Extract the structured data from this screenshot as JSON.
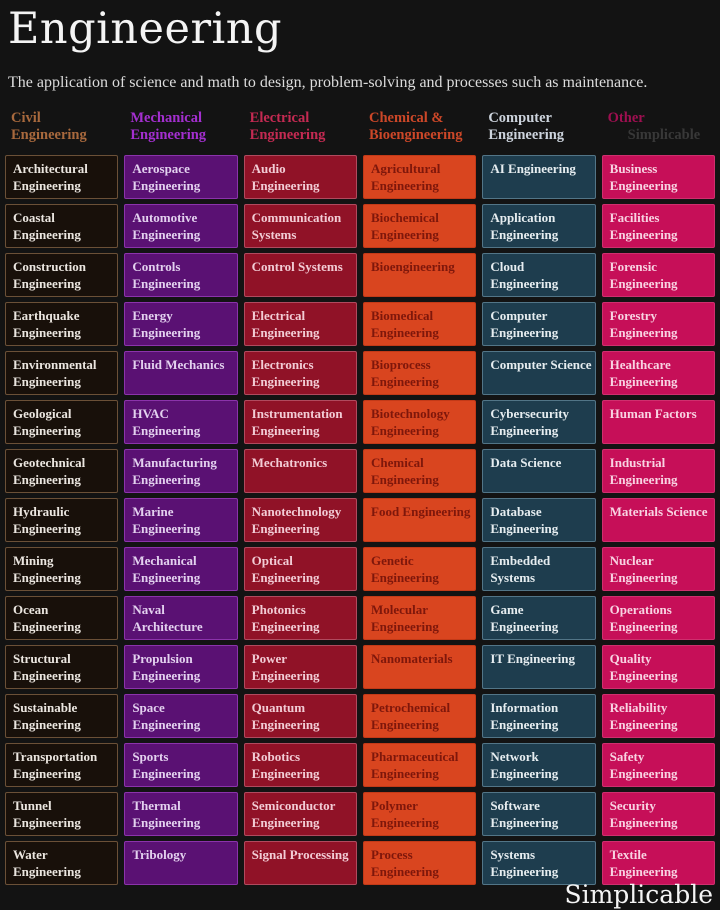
{
  "page": {
    "title": "Engineering",
    "subtitle": "The application of science and math to design, problem-solving and processes such as maintenance.",
    "brand": "Simplicable",
    "background": "#131313",
    "title_color": "#f4f4f4",
    "subtitle_color": "#dcdcdc"
  },
  "columns": [
    {
      "id": "civil",
      "header": "Civil Engineering",
      "header_color": "#a8693d",
      "cell_bg": "#18100a",
      "cell_border": "#6b5037",
      "cell_text": "#ebe6e0",
      "items": [
        "Architectural Engineering",
        "Coastal Engineering",
        "Construction Engineering",
        "Earthquake Engineering",
        "Environmental Engineering",
        "Geological Engineering",
        "Geotechnical Engineering",
        "Hydraulic Engineering",
        "Mining Engineering",
        "Ocean Engineering",
        "Structural Engineering",
        "Sustainable Engineering",
        "Transportation Engineering",
        "Tunnel Engineering",
        "Water Engineering"
      ]
    },
    {
      "id": "mechanical",
      "header": "Mechanical Engineering",
      "header_color": "#a42fd0",
      "cell_bg": "#5a1173",
      "cell_border": "#8b33ab",
      "cell_text": "#e3d1ef",
      "items": [
        "Aerospace Engineering",
        "Automotive Engineering",
        "Controls Engineering",
        "Energy Engineering",
        "Fluid Mechanics",
        "HVAC Engineering",
        "Manufacturing Engineering",
        "Marine Engineering",
        "Mechanical Engineering",
        "Naval Architecture",
        "Propulsion Engineering",
        "Space Engineering",
        "Sports Engineering",
        "Thermal Engineering",
        "Tribology"
      ]
    },
    {
      "id": "electrical",
      "header": "Electrical Engineering",
      "header_color": "#c42a52",
      "cell_bg": "#901227",
      "cell_border": "#b04a5e",
      "cell_text": "#f2ccd5",
      "items": [
        "Audio Engineering",
        "Communication Systems",
        "Control Systems",
        "Electrical Engineering",
        "Electronics Engineering",
        "Instrumentation Engineering",
        "Mechatronics",
        "Nanotechnology Engineering",
        "Optical Engineering",
        "Photonics Engineering",
        "Power Engineering",
        "Quantum Engineering",
        "Robotics Engineering",
        "Semiconductor Engineering",
        "Signal Processing"
      ]
    },
    {
      "id": "chemical-bio",
      "header": "Chemical & Bioengineering",
      "header_color": "#cc4728",
      "cell_bg": "#d9451f",
      "cell_border": "#c23a18",
      "cell_text": "#7e170b",
      "items": [
        "Agricultural Engineering",
        "Biochemical Engineering",
        "Bioengineering",
        "Biomedical Engineering",
        "Bioprocess Engineering",
        "Biotechnology Engineering",
        "Chemical Engineering",
        "Food Engineering",
        "Genetic Engineering",
        "Molecular Engineering",
        "Nanomaterials",
        "Petrochemical Engineering",
        "Pharmaceutical Engineering",
        "Polymer Engineering",
        "Process Engineering"
      ]
    },
    {
      "id": "computer",
      "header": "Computer Engineering",
      "header_color": "#ccd3dc",
      "cell_bg": "#1e3d4e",
      "cell_border": "#527587",
      "cell_text": "#e6edf0",
      "items": [
        "AI Engineering",
        "Application Engineering",
        "Cloud Engineering",
        "Computer Engineering",
        "Computer Science",
        "Cybersecurity Engineering",
        "Data Science",
        "Database Engineering",
        "Embedded Systems",
        "Game Engineering",
        "IT Engineering",
        "Information Engineering",
        "Network Engineering",
        "Software Engineering",
        "Systems Engineering"
      ]
    },
    {
      "id": "other",
      "header": "Other",
      "header_color": "#9e0f50",
      "watermark": "Simplicable",
      "cell_bg": "#c60f58",
      "cell_border": "#cf2f6e",
      "cell_text": "#f8d3e2",
      "items": [
        "Business Engineering",
        "Facilities Engineering",
        "Forensic Engineering",
        "Forestry Engineering",
        "Healthcare Engineering",
        "Human Factors",
        "Industrial Engineering",
        "Materials Science",
        "Nuclear Engineering",
        "Operations Engineering",
        "Quality Engineering",
        "Reliability Engineering",
        "Safety Engineering",
        "Security Engineering",
        "Textile Engineering"
      ]
    }
  ]
}
